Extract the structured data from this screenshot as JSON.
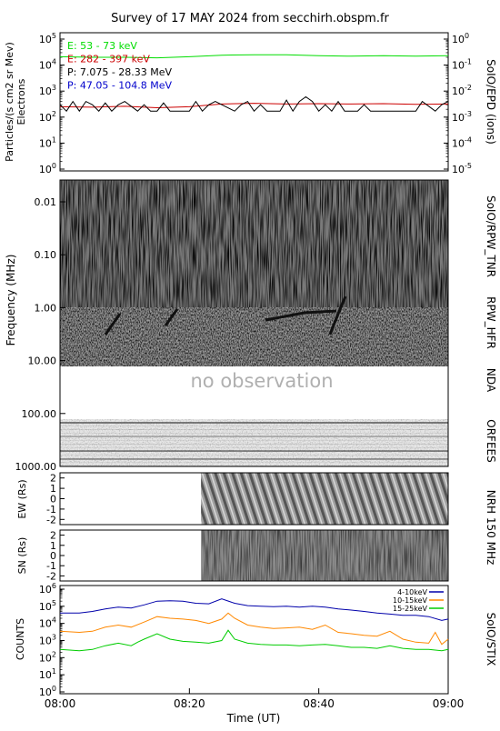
{
  "title": "Survey of 17 MAY 2024 from secchirh.obspm.fr",
  "xaxis": {
    "label": "Time (UT)",
    "ticks": [
      "08:00",
      "08:20",
      "08:40",
      "09:00"
    ]
  },
  "chart_data": [
    {
      "type": "line",
      "panel": "epd",
      "yscale": "log",
      "ylim": [
        0.5,
        100000
      ],
      "yticks": [
        "10^0",
        "10^1",
        "10^2",
        "10^3",
        "10^4",
        "10^5"
      ],
      "ylabel": "Particles/(s cm2 sr Mev) Electrons",
      "ylabel_lines": [
        "Particles/(s cm2 sr Mev)",
        "Electrons"
      ],
      "y2scale": "log",
      "y2ticks": [
        "10^0",
        "10^-1",
        "10^-2",
        "10^-3",
        "10^-4",
        "10^-5"
      ],
      "y2label": "SoIO/EPD (ions)",
      "series": [
        {
          "name": "E: 53 - 73 keV",
          "color": "#00dd00",
          "x": [
            0,
            5,
            10,
            15,
            20,
            25,
            30,
            35,
            40,
            45,
            50,
            55,
            60
          ],
          "values": [
            21000,
            20000,
            20000,
            19000,
            21000,
            24000,
            25000,
            25000,
            23000,
            22000,
            23000,
            22000,
            23000
          ]
        },
        {
          "name": "E: 282 - 397 keV",
          "color": "#cc0000",
          "x": [
            0,
            5,
            10,
            15,
            20,
            25,
            30,
            35,
            40,
            45,
            50,
            55,
            60
          ],
          "values": [
            250,
            240,
            260,
            230,
            250,
            320,
            340,
            320,
            330,
            320,
            330,
            310,
            320
          ]
        },
        {
          "name": "P: 7.075 - 28.33 MeV",
          "color": "#000000",
          "x": [
            0,
            1,
            2,
            3,
            4,
            5,
            6,
            7,
            8,
            9,
            10,
            12,
            13,
            14,
            15,
            16,
            17,
            20,
            21,
            22,
            23,
            24,
            27,
            28,
            29,
            30,
            31,
            32,
            34,
            35,
            36,
            37,
            38,
            39,
            40,
            41,
            42,
            43,
            44,
            46,
            47,
            48,
            50,
            55,
            56,
            58,
            59,
            60
          ],
          "values": [
            300,
            170,
            400,
            170,
            400,
            300,
            170,
            350,
            170,
            300,
            400,
            170,
            300,
            170,
            170,
            350,
            170,
            170,
            400,
            170,
            300,
            400,
            170,
            300,
            400,
            170,
            300,
            170,
            170,
            450,
            170,
            400,
            600,
            400,
            170,
            300,
            170,
            400,
            170,
            170,
            300,
            170,
            170,
            170,
            400,
            170,
            300,
            400
          ]
        },
        {
          "name": "P: 47.05 - 104.8 MeV",
          "color": "#0000cc",
          "x": [],
          "values": []
        }
      ]
    },
    {
      "type": "heatmap",
      "panel": "radio-spectrogram",
      "yscale": "log",
      "ylabel": "Frequency (MHz)",
      "yticks": [
        "0.01",
        "0.10",
        "1.00",
        "10.00",
        "100.00",
        "1000.00"
      ],
      "right_labels": [
        "SoIO/RPW_TNR",
        "RPW_HFR",
        "NDA",
        "ORFEES"
      ],
      "annotation": "no observation"
    },
    {
      "type": "heatmap",
      "panel": "nrh-ew",
      "ylabel": "EW (Rs)",
      "ylim": [
        -2.5,
        2.5
      ],
      "yticks": [
        "2",
        "1",
        "0",
        "-1",
        "-2"
      ],
      "data_start": 21.8
    },
    {
      "type": "heatmap",
      "panel": "nrh-sn",
      "ylabel": "SN (Rs)",
      "ylim": [
        -2.5,
        2.5
      ],
      "yticks": [
        "2",
        "1",
        "0",
        "-1",
        "-2"
      ],
      "data_start": 21.8,
      "right_label": "NRH 150 MHz"
    },
    {
      "type": "line",
      "panel": "stix",
      "yscale": "log",
      "ylabel": "COUNTS",
      "ylim": [
        0.5,
        2000000
      ],
      "yticks": [
        "10^0",
        "10^1",
        "10^2",
        "10^3",
        "10^4",
        "10^5",
        "10^6"
      ],
      "right_label": "SoIO/STIX",
      "series": [
        {
          "name": "4-10keV",
          "color": "#0000aa",
          "x": [
            0,
            3,
            5,
            7,
            9,
            11,
            13,
            15,
            17,
            19,
            21,
            23,
            25,
            27,
            29,
            31,
            33,
            35,
            37,
            39,
            41,
            43,
            45,
            47,
            49,
            51,
            53,
            55,
            57,
            59,
            60
          ],
          "values": [
            40000,
            40000,
            50000,
            70000,
            90000,
            80000,
            120000,
            200000,
            210000,
            200000,
            150000,
            140000,
            270000,
            150000,
            110000,
            100000,
            95000,
            100000,
            90000,
            100000,
            90000,
            70000,
            60000,
            50000,
            40000,
            35000,
            30000,
            30000,
            25000,
            15000,
            18000
          ]
        },
        {
          "name": "10-15keV",
          "color": "#ff8800",
          "x": [
            0,
            3,
            5,
            7,
            9,
            11,
            13,
            15,
            17,
            19,
            21,
            23,
            25,
            26,
            27,
            29,
            31,
            33,
            35,
            37,
            39,
            41,
            43,
            45,
            47,
            49,
            51,
            53,
            55,
            57,
            58,
            59,
            60
          ],
          "values": [
            3500,
            3000,
            3500,
            6000,
            8000,
            6000,
            12000,
            25000,
            20000,
            18000,
            15000,
            10000,
            18000,
            40000,
            20000,
            8000,
            6000,
            5000,
            5500,
            6000,
            4500,
            8000,
            3000,
            2500,
            2000,
            1800,
            3500,
            1200,
            800,
            700,
            3000,
            600,
            1200
          ]
        },
        {
          "name": "15-25keV",
          "color": "#00cc00",
          "x": [
            0,
            3,
            5,
            7,
            9,
            11,
            12,
            13,
            15,
            17,
            19,
            21,
            23,
            25,
            26,
            27,
            29,
            31,
            33,
            35,
            37,
            39,
            41,
            43,
            45,
            47,
            49,
            51,
            53,
            55,
            57,
            59,
            60
          ],
          "values": [
            300,
            250,
            300,
            500,
            700,
            500,
            800,
            1200,
            2500,
            1200,
            900,
            800,
            700,
            1000,
            4000,
            1200,
            700,
            600,
            550,
            550,
            500,
            550,
            600,
            500,
            400,
            400,
            350,
            500,
            350,
            300,
            300,
            250,
            300
          ]
        }
      ]
    }
  ]
}
